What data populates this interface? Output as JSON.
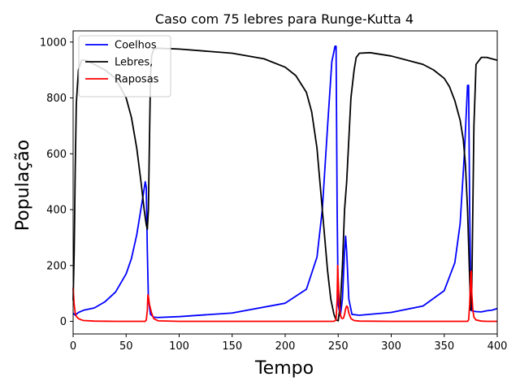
{
  "chart_data": {
    "type": "line",
    "title": "Caso com 75 lebres para Runge-Kutta 4",
    "xlabel": "Tempo",
    "ylabel": "População",
    "xlim": [
      0,
      400
    ],
    "ylim": [
      -45,
      1040
    ],
    "xticks": [
      0,
      50,
      100,
      150,
      200,
      250,
      300,
      350,
      400
    ],
    "yticks": [
      0,
      200,
      400,
      600,
      800,
      1000
    ],
    "grid": false,
    "legend_position": "top-left",
    "series": [
      {
        "name": "Coelhos",
        "color": "#0000ff",
        "x": [
          0,
          2,
          5,
          10,
          20,
          30,
          40,
          50,
          55,
          60,
          63,
          66,
          68,
          69,
          70,
          71,
          73,
          76,
          80,
          100,
          150,
          200,
          220,
          230,
          235,
          240,
          244,
          247,
          248,
          249,
          250,
          252,
          254,
          256,
          257,
          258,
          260,
          263,
          270,
          300,
          330,
          350,
          360,
          365,
          369,
          372,
          373,
          374,
          375,
          376,
          378,
          380,
          385,
          390,
          395,
          400
        ],
        "y": [
          30,
          22,
          32,
          40,
          48,
          70,
          105,
          170,
          225,
          310,
          380,
          450,
          500,
          480,
          250,
          80,
          25,
          15,
          14,
          17,
          30,
          65,
          115,
          230,
          400,
          700,
          930,
          985,
          985,
          400,
          60,
          20,
          80,
          250,
          305,
          250,
          80,
          25,
          22,
          32,
          55,
          110,
          210,
          350,
          600,
          845,
          845,
          400,
          100,
          38,
          36,
          35,
          34,
          38,
          40,
          46
        ]
      },
      {
        "name": "Lebres,",
        "color": "#000000",
        "x": [
          0,
          1,
          2,
          3,
          5,
          8,
          12,
          20,
          30,
          40,
          50,
          55,
          60,
          64,
          67,
          69,
          70,
          71,
          72,
          73,
          74,
          76,
          80,
          100,
          150,
          180,
          200,
          210,
          220,
          225,
          230,
          235,
          240,
          243,
          246,
          248,
          250,
          252,
          254,
          256,
          258,
          262,
          265,
          267,
          270,
          280,
          300,
          330,
          340,
          350,
          355,
          360,
          365,
          368,
          370,
          372,
          374,
          375,
          376,
          378,
          380,
          385,
          390,
          395,
          400
        ],
        "y": [
          75,
          250,
          550,
          780,
          900,
          935,
          935,
          920,
          900,
          870,
          800,
          730,
          620,
          500,
          400,
          345,
          330,
          400,
          650,
          880,
          950,
          975,
          978,
          975,
          960,
          940,
          910,
          880,
          820,
          750,
          620,
          400,
          180,
          80,
          25,
          5,
          2,
          60,
          200,
          400,
          500,
          800,
          900,
          945,
          960,
          962,
          950,
          920,
          900,
          870,
          840,
          790,
          720,
          650,
          560,
          400,
          150,
          40,
          120,
          700,
          920,
          945,
          945,
          940,
          935
        ]
      },
      {
        "name": "Raposas",
        "color": "#ff0000",
        "x": [
          0,
          1,
          2,
          3,
          5,
          8,
          10,
          20,
          40,
          60,
          68,
          69,
          70,
          70.5,
          71,
          72,
          74,
          76,
          80,
          100,
          150,
          200,
          240,
          246,
          248,
          249,
          249.5,
          250,
          251,
          252,
          253,
          254,
          255,
          256,
          257,
          258,
          259,
          260,
          262,
          265,
          270,
          300,
          350,
          370,
          372,
          373,
          374,
          375,
          375.5,
          376,
          377,
          378,
          380,
          385,
          390,
          400
        ],
        "y": [
          120,
          60,
          30,
          18,
          10,
          5,
          3,
          1,
          0,
          0,
          0,
          5,
          40,
          95,
          90,
          60,
          30,
          10,
          2,
          0,
          0,
          0,
          0,
          0,
          5,
          80,
          200,
          150,
          60,
          25,
          12,
          10,
          12,
          25,
          45,
          55,
          50,
          30,
          10,
          3,
          1,
          0,
          0,
          0,
          0,
          5,
          60,
          175,
          180,
          100,
          40,
          15,
          5,
          1,
          0,
          0
        ]
      }
    ]
  }
}
